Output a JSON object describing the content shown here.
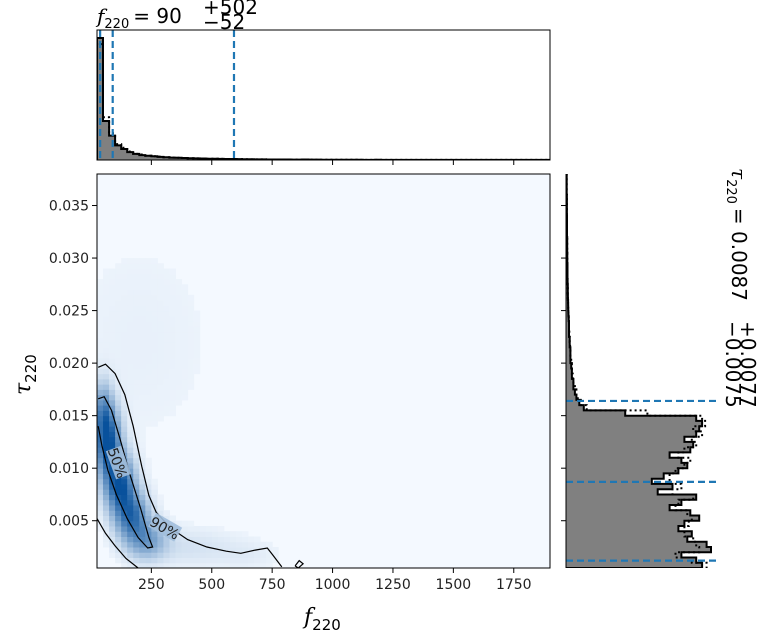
{
  "colors": {
    "hist_fill": "#808080",
    "quantile_line": "#1f77b4",
    "density_low": "#f4f9ff",
    "density_high": "#08519c",
    "contour": "#000000"
  },
  "chart_data": [
    {
      "id": "joint",
      "type": "heatmap",
      "xlabel": "f_220",
      "ylabel": "τ_220",
      "xlim": [
        25,
        1900
      ],
      "ylim": [
        0.0005,
        0.038
      ],
      "x_ticks": [
        250,
        500,
        750,
        1000,
        1250,
        1500,
        1750
      ],
      "x_tick_labels": [
        "250",
        "500",
        "750",
        "1000",
        "1250",
        "1500",
        "1750"
      ],
      "y_ticks": [
        0.005,
        0.01,
        0.015,
        0.02,
        0.025,
        0.03,
        0.035
      ],
      "y_tick_labels": [
        "0.005",
        "0.010",
        "0.015",
        "0.020",
        "0.025",
        "0.030",
        "0.035"
      ],
      "colormap": "Blues",
      "contours": [
        {
          "label": "50%",
          "label_at": [
            110,
            0.0105
          ],
          "label_rotation": 70,
          "points": [
            [
              30,
              0.0166
            ],
            [
              55,
              0.0168
            ],
            [
              85,
              0.0155
            ],
            [
              120,
              0.0128
            ],
            [
              160,
              0.0095
            ],
            [
              205,
              0.0062
            ],
            [
              240,
              0.0034
            ],
            [
              255,
              0.0025
            ],
            [
              235,
              0.0024
            ],
            [
              195,
              0.0034
            ],
            [
              150,
              0.0052
            ],
            [
              105,
              0.0075
            ],
            [
              70,
              0.0098
            ],
            [
              45,
              0.0122
            ],
            [
              30,
              0.014
            ]
          ]
        },
        {
          "label": "90%",
          "label_at": [
            305,
            0.0043
          ],
          "label_rotation": 30,
          "points": [
            [
              30,
              0.0196
            ],
            [
              60,
              0.0199
            ],
            [
              100,
              0.019
            ],
            [
              140,
              0.017
            ],
            [
              175,
              0.014
            ],
            [
              210,
              0.0102
            ],
            [
              240,
              0.0074
            ],
            [
              270,
              0.0058
            ],
            [
              330,
              0.0043
            ],
            [
              400,
              0.0032
            ],
            [
              480,
              0.0025
            ],
            [
              560,
              0.0021
            ],
            [
              620,
              0.0019
            ],
            [
              680,
              0.0022
            ],
            [
              730,
              0.0024
            ],
            [
              750,
              0.0018
            ],
            [
              790,
              0.0006
            ]
          ]
        },
        {
          "label": "",
          "label_at": null,
          "label_rotation": 0,
          "points": [
            [
              25,
              0.0052
            ],
            [
              60,
              0.0038
            ],
            [
              100,
              0.0026
            ],
            [
              145,
              0.0014
            ],
            [
              195,
              0.0005
            ]
          ]
        },
        {
          "label": "",
          "label_at": null,
          "label_rotation": 0,
          "points": [
            [
              845,
              0.0007
            ],
            [
              862,
              0.0012
            ],
            [
              878,
              0.0009
            ],
            [
              858,
              0.0005
            ],
            [
              845,
              0.0007
            ]
          ]
        }
      ],
      "density_blobs": [
        {
          "x": 70,
          "y": 0.0125,
          "sx": 35,
          "sy": 0.0022,
          "w": 1.0
        },
        {
          "x": 120,
          "y": 0.0085,
          "sx": 40,
          "sy": 0.0018,
          "w": 0.95
        },
        {
          "x": 170,
          "y": 0.0055,
          "sx": 45,
          "sy": 0.0015,
          "w": 0.75
        },
        {
          "x": 230,
          "y": 0.0032,
          "sx": 55,
          "sy": 0.0012,
          "w": 0.45
        },
        {
          "x": 50,
          "y": 0.0155,
          "sx": 25,
          "sy": 0.0018,
          "w": 0.45
        },
        {
          "x": 400,
          "y": 0.0025,
          "sx": 130,
          "sy": 0.0012,
          "w": 0.08
        },
        {
          "x": 650,
          "y": 0.0018,
          "sx": 90,
          "sy": 0.001,
          "w": 0.04
        },
        {
          "x": 200,
          "y": 0.022,
          "sx": 250,
          "sy": 0.008,
          "w": 0.025
        }
      ]
    },
    {
      "id": "top-marginal",
      "type": "bar",
      "title": "f_220 = 90 (+502, −52)",
      "title_main": "= 90",
      "title_upper": "+502",
      "title_lower": "−52",
      "xlim": [
        25,
        1900
      ],
      "bin_edges_start": 25,
      "bin_width": 25,
      "hist_solid": [
        1.0,
        0.32,
        0.2,
        0.12,
        0.09,
        0.065,
        0.05,
        0.04,
        0.035,
        0.03,
        0.025,
        0.022,
        0.02,
        0.018,
        0.016,
        0.015,
        0.013,
        0.012,
        0.011,
        0.01,
        0.009,
        0.008,
        0.008,
        0.007,
        0.006,
        0.006,
        0.005,
        0.005,
        0.004,
        0.004,
        0.004,
        0.004,
        0.003,
        0.003,
        0.004,
        0.003,
        0.003,
        0.002,
        0.002,
        0.002,
        0.002,
        0.002,
        0.002,
        0.002,
        0.001,
        0.001,
        0.002,
        0.001,
        0.001,
        0.001,
        0.001,
        0.001,
        0.001,
        0.001,
        0.001,
        0.001,
        0.001,
        0.001,
        0.001,
        0.001,
        0.001,
        0.001,
        0.001,
        0.001,
        0.001,
        0.001,
        0.001,
        0.001,
        0.001,
        0.001,
        0.001,
        0.001,
        0.001,
        0.001,
        0.001
      ],
      "hist_dotted": [
        0.95,
        0.35,
        0.22,
        0.13,
        0.1,
        0.07,
        0.05,
        0.045,
        0.035,
        0.03,
        0.028,
        0.022,
        0.02,
        0.018,
        0.016,
        0.014,
        0.013,
        0.012,
        0.01,
        0.01,
        0.009,
        0.008,
        0.007,
        0.007,
        0.006,
        0.005,
        0.005,
        0.005,
        0.004,
        0.004,
        0.003,
        0.003,
        0.003,
        0.003,
        0.003,
        0.003,
        0.002,
        0.002,
        0.002,
        0.002,
        0.002,
        0.002,
        0.002,
        0.001,
        0.001,
        0.001,
        0.001,
        0.001,
        0.001,
        0.001,
        0.001,
        0.001,
        0.001,
        0.001,
        0.001,
        0.001,
        0.001,
        0.001,
        0.001,
        0.001,
        0.001,
        0.001,
        0.001,
        0.001,
        0.001,
        0.001,
        0.001,
        0.001,
        0.001,
        0.001,
        0.001,
        0.001,
        0.001,
        0.001,
        0.001
      ],
      "quantiles": [
        38,
        90,
        592
      ]
    },
    {
      "id": "right-marginal",
      "type": "bar",
      "title": "τ_220 = 0.0087 (+0.0077, −0.0075)",
      "title_main": "= 0.0087",
      "title_upper": "+0.0077",
      "title_lower": "−0.0075",
      "ylim": [
        0.0005,
        0.038
      ],
      "bin_edges_start": 0.0005,
      "bin_width": 0.0005,
      "hist_solid": [
        0.92,
        0.88,
        0.78,
        0.98,
        0.95,
        0.82,
        0.85,
        0.76,
        0.8,
        0.9,
        0.84,
        0.7,
        0.78,
        0.88,
        0.62,
        0.72,
        0.58,
        0.66,
        0.76,
        0.82,
        0.78,
        0.7,
        0.84,
        0.86,
        0.8,
        0.88,
        0.9,
        0.92,
        0.88,
        0.4,
        0.12,
        0.09,
        0.07,
        0.06,
        0.05,
        0.05,
        0.04,
        0.04,
        0.035,
        0.03,
        0.03,
        0.03,
        0.025,
        0.025,
        0.02,
        0.02,
        0.02,
        0.018,
        0.016,
        0.015,
        0.014,
        0.013,
        0.012,
        0.012,
        0.011,
        0.01,
        0.01,
        0.01,
        0.009,
        0.009,
        0.008,
        0.008,
        0.008,
        0.007,
        0.007,
        0.007,
        0.007,
        0.006,
        0.006,
        0.006,
        0.006,
        0.005,
        0.005,
        0.005,
        0.005
      ],
      "hist_dotted": [
        0.95,
        0.85,
        0.74,
        0.9,
        0.88,
        0.86,
        0.8,
        0.8,
        0.83,
        0.85,
        0.82,
        0.74,
        0.76,
        0.86,
        0.72,
        0.78,
        0.7,
        0.7,
        0.74,
        0.8,
        0.84,
        0.76,
        0.8,
        0.88,
        0.85,
        0.92,
        0.86,
        0.94,
        0.92,
        0.55,
        0.14,
        0.1,
        0.08,
        0.07,
        0.06,
        0.05,
        0.045,
        0.04,
        0.04,
        0.035,
        0.03,
        0.03,
        0.028,
        0.025,
        0.022,
        0.02,
        0.02,
        0.018,
        0.016,
        0.015,
        0.014,
        0.013,
        0.012,
        0.012,
        0.011,
        0.01,
        0.01,
        0.01,
        0.009,
        0.009,
        0.008,
        0.008,
        0.008,
        0.007,
        0.007,
        0.007,
        0.007,
        0.006,
        0.006,
        0.006,
        0.006,
        0.005,
        0.005,
        0.005,
        0.005
      ],
      "quantiles": [
        0.0012,
        0.0087,
        0.0164
      ]
    }
  ]
}
